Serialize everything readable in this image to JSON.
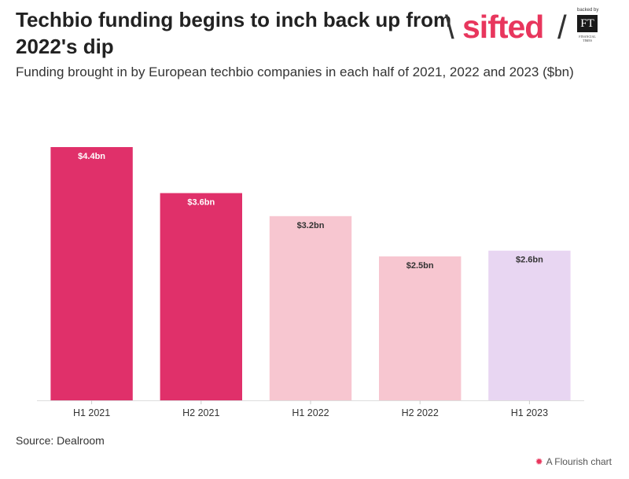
{
  "header": {
    "title": "Techbio funding begins to inch back up from 2022's dip",
    "subtitle": "Funding brought in by European techbio companies in each half of 2021, 2022 and 2023 ($bn)"
  },
  "branding": {
    "logo_text": "sifted",
    "logo_color": "#e8365d",
    "backed_by": "backed by",
    "ft_mark": "FT",
    "ft_name": "FINANCIAL TIMES"
  },
  "chart_data": {
    "type": "bar",
    "title": "Techbio funding begins to inch back up from 2022's dip",
    "subtitle": "Funding brought in by European techbio companies in each half of 2021, 2022 and 2023 ($bn)",
    "xlabel": "",
    "ylabel": "",
    "ylim": [
      0,
      4.4
    ],
    "grid": false,
    "categories": [
      "H1 2021",
      "H2 2021",
      "H1 2022",
      "H2 2022",
      "H1 2023"
    ],
    "values": [
      4.4,
      3.6,
      3.2,
      2.5,
      2.6
    ],
    "data_labels": [
      "$4.4bn",
      "$3.6bn",
      "$3.2bn",
      "$2.5bn",
      "$2.6bn"
    ],
    "colors": [
      "#e0306a",
      "#e0306a",
      "#f7c6d0",
      "#f7c6d0",
      "#e8d6f2"
    ],
    "label_colors": [
      "#ffffff",
      "#ffffff",
      "#333333",
      "#333333",
      "#333333"
    ]
  },
  "footer": {
    "source": "Source: Dealroom",
    "credit": "A Flourish chart"
  }
}
